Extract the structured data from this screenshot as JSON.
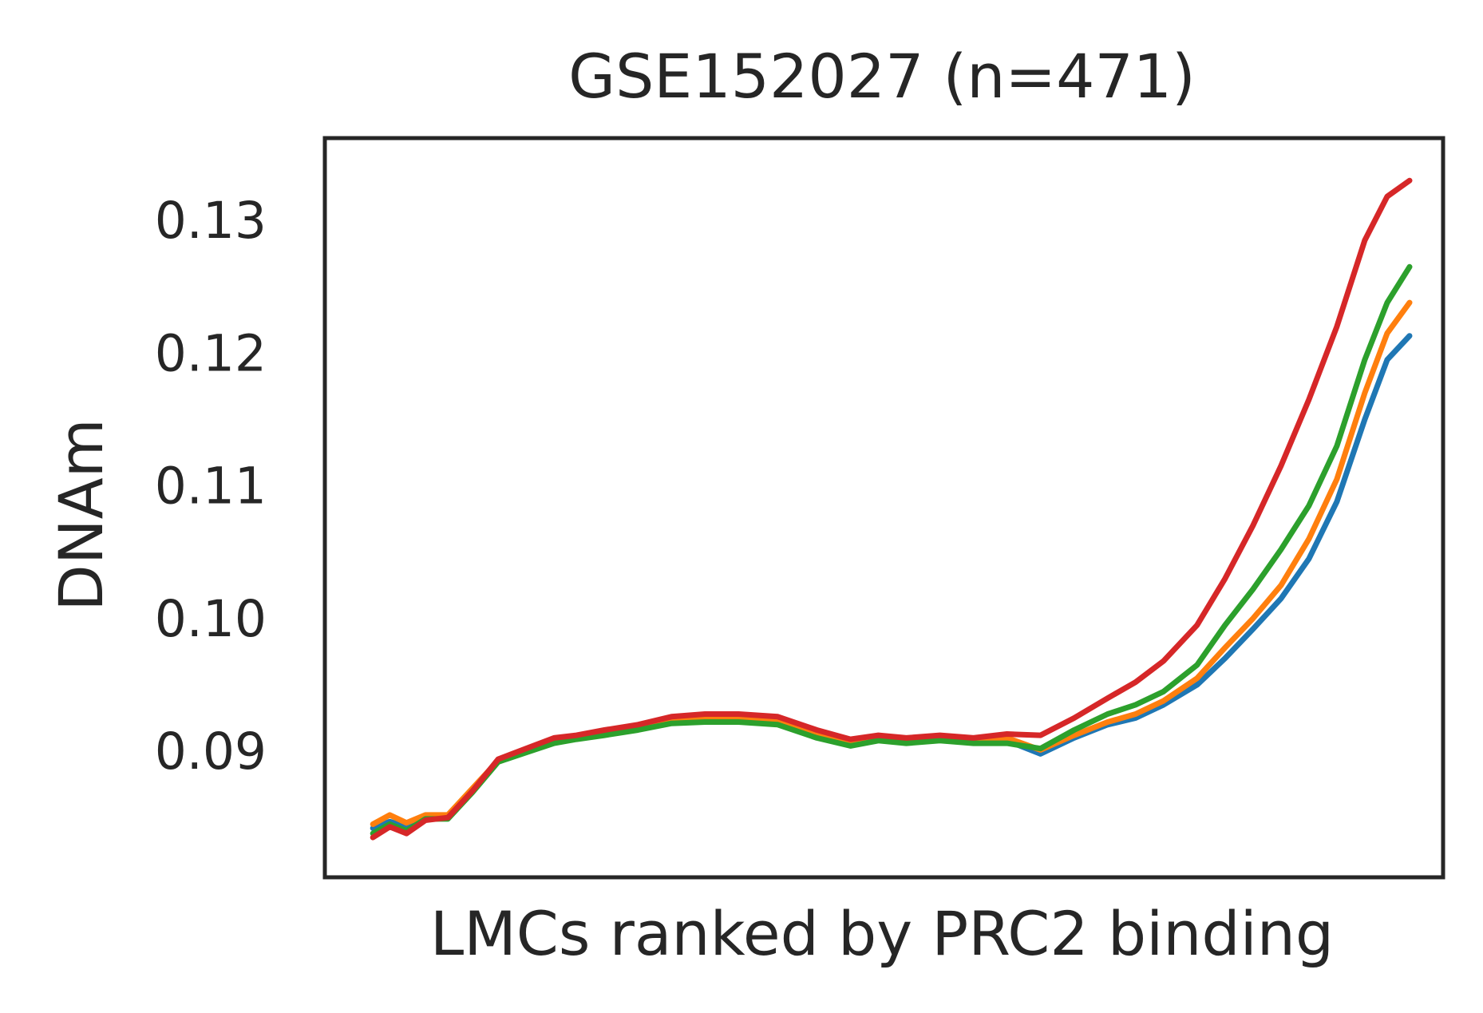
{
  "chart_data": {
    "type": "line",
    "title": "GSE152027 (n=471)",
    "xlabel": "LMCs ranked by PRC2 binding",
    "ylabel": "DNAm",
    "xlim": [
      0,
      100
    ],
    "ylim": [
      0.0805,
      0.1362
    ],
    "yticks": [
      0.09,
      0.1,
      0.11,
      0.12,
      0.13
    ],
    "ytick_labels": [
      "0.09",
      "0.10",
      "0.11",
      "0.12",
      "0.13"
    ],
    "grid": false,
    "legend": "none",
    "x": [
      4.3,
      5.8,
      7.3,
      9.0,
      11.0,
      13.2,
      15.5,
      18.0,
      20.5,
      22.5,
      25.0,
      28.0,
      31.0,
      34.0,
      37.0,
      40.5,
      44.0,
      47.0,
      49.5,
      52.0,
      55.0,
      58.0,
      61.0,
      64.0,
      67.0,
      70.0,
      72.5,
      75.0,
      78.0,
      80.5,
      83.0,
      85.5,
      88.0,
      90.5,
      93.0,
      95.0,
      97.0
    ],
    "series": [
      {
        "color": "#1f77b4",
        "values": [
          0.0842,
          0.0847,
          0.0843,
          0.085,
          0.085,
          0.087,
          0.0893,
          0.09,
          0.0908,
          0.091,
          0.0913,
          0.0918,
          0.0923,
          0.0924,
          0.0924,
          0.0922,
          0.0912,
          0.0906,
          0.091,
          0.0908,
          0.091,
          0.0908,
          0.0908,
          0.0898,
          0.091,
          0.092,
          0.0925,
          0.0935,
          0.095,
          0.097,
          0.0992,
          0.1015,
          0.1045,
          0.1088,
          0.115,
          0.1195,
          0.1213
        ]
      },
      {
        "color": "#ff7f0e",
        "values": [
          0.0845,
          0.0852,
          0.0846,
          0.0852,
          0.0852,
          0.0872,
          0.0893,
          0.09,
          0.0908,
          0.091,
          0.0913,
          0.0918,
          0.0923,
          0.0924,
          0.0924,
          0.0922,
          0.0912,
          0.0906,
          0.091,
          0.0908,
          0.091,
          0.0908,
          0.091,
          0.0901,
          0.0912,
          0.0922,
          0.0928,
          0.0938,
          0.0955,
          0.0978,
          0.1,
          0.1025,
          0.106,
          0.1105,
          0.117,
          0.1215,
          0.1238
        ]
      },
      {
        "color": "#2ca02c",
        "values": [
          0.0838,
          0.0845,
          0.084,
          0.0849,
          0.0849,
          0.0869,
          0.0892,
          0.0899,
          0.0906,
          0.0909,
          0.0912,
          0.0916,
          0.0921,
          0.0922,
          0.0922,
          0.092,
          0.091,
          0.0904,
          0.0908,
          0.0906,
          0.0908,
          0.0906,
          0.0906,
          0.0902,
          0.0916,
          0.0928,
          0.0935,
          0.0945,
          0.0965,
          0.0995,
          0.1022,
          0.1052,
          0.1085,
          0.113,
          0.1195,
          0.1238,
          0.1265
        ]
      },
      {
        "color": "#d62728",
        "values": [
          0.0835,
          0.0843,
          0.0838,
          0.0848,
          0.085,
          0.087,
          0.0894,
          0.0902,
          0.091,
          0.0912,
          0.0916,
          0.092,
          0.0926,
          0.0928,
          0.0928,
          0.0926,
          0.0916,
          0.0909,
          0.0912,
          0.091,
          0.0912,
          0.091,
          0.0913,
          0.0912,
          0.0925,
          0.094,
          0.0952,
          0.0968,
          0.0995,
          0.103,
          0.107,
          0.1115,
          0.1165,
          0.122,
          0.1285,
          0.1318,
          0.133
        ]
      }
    ]
  }
}
